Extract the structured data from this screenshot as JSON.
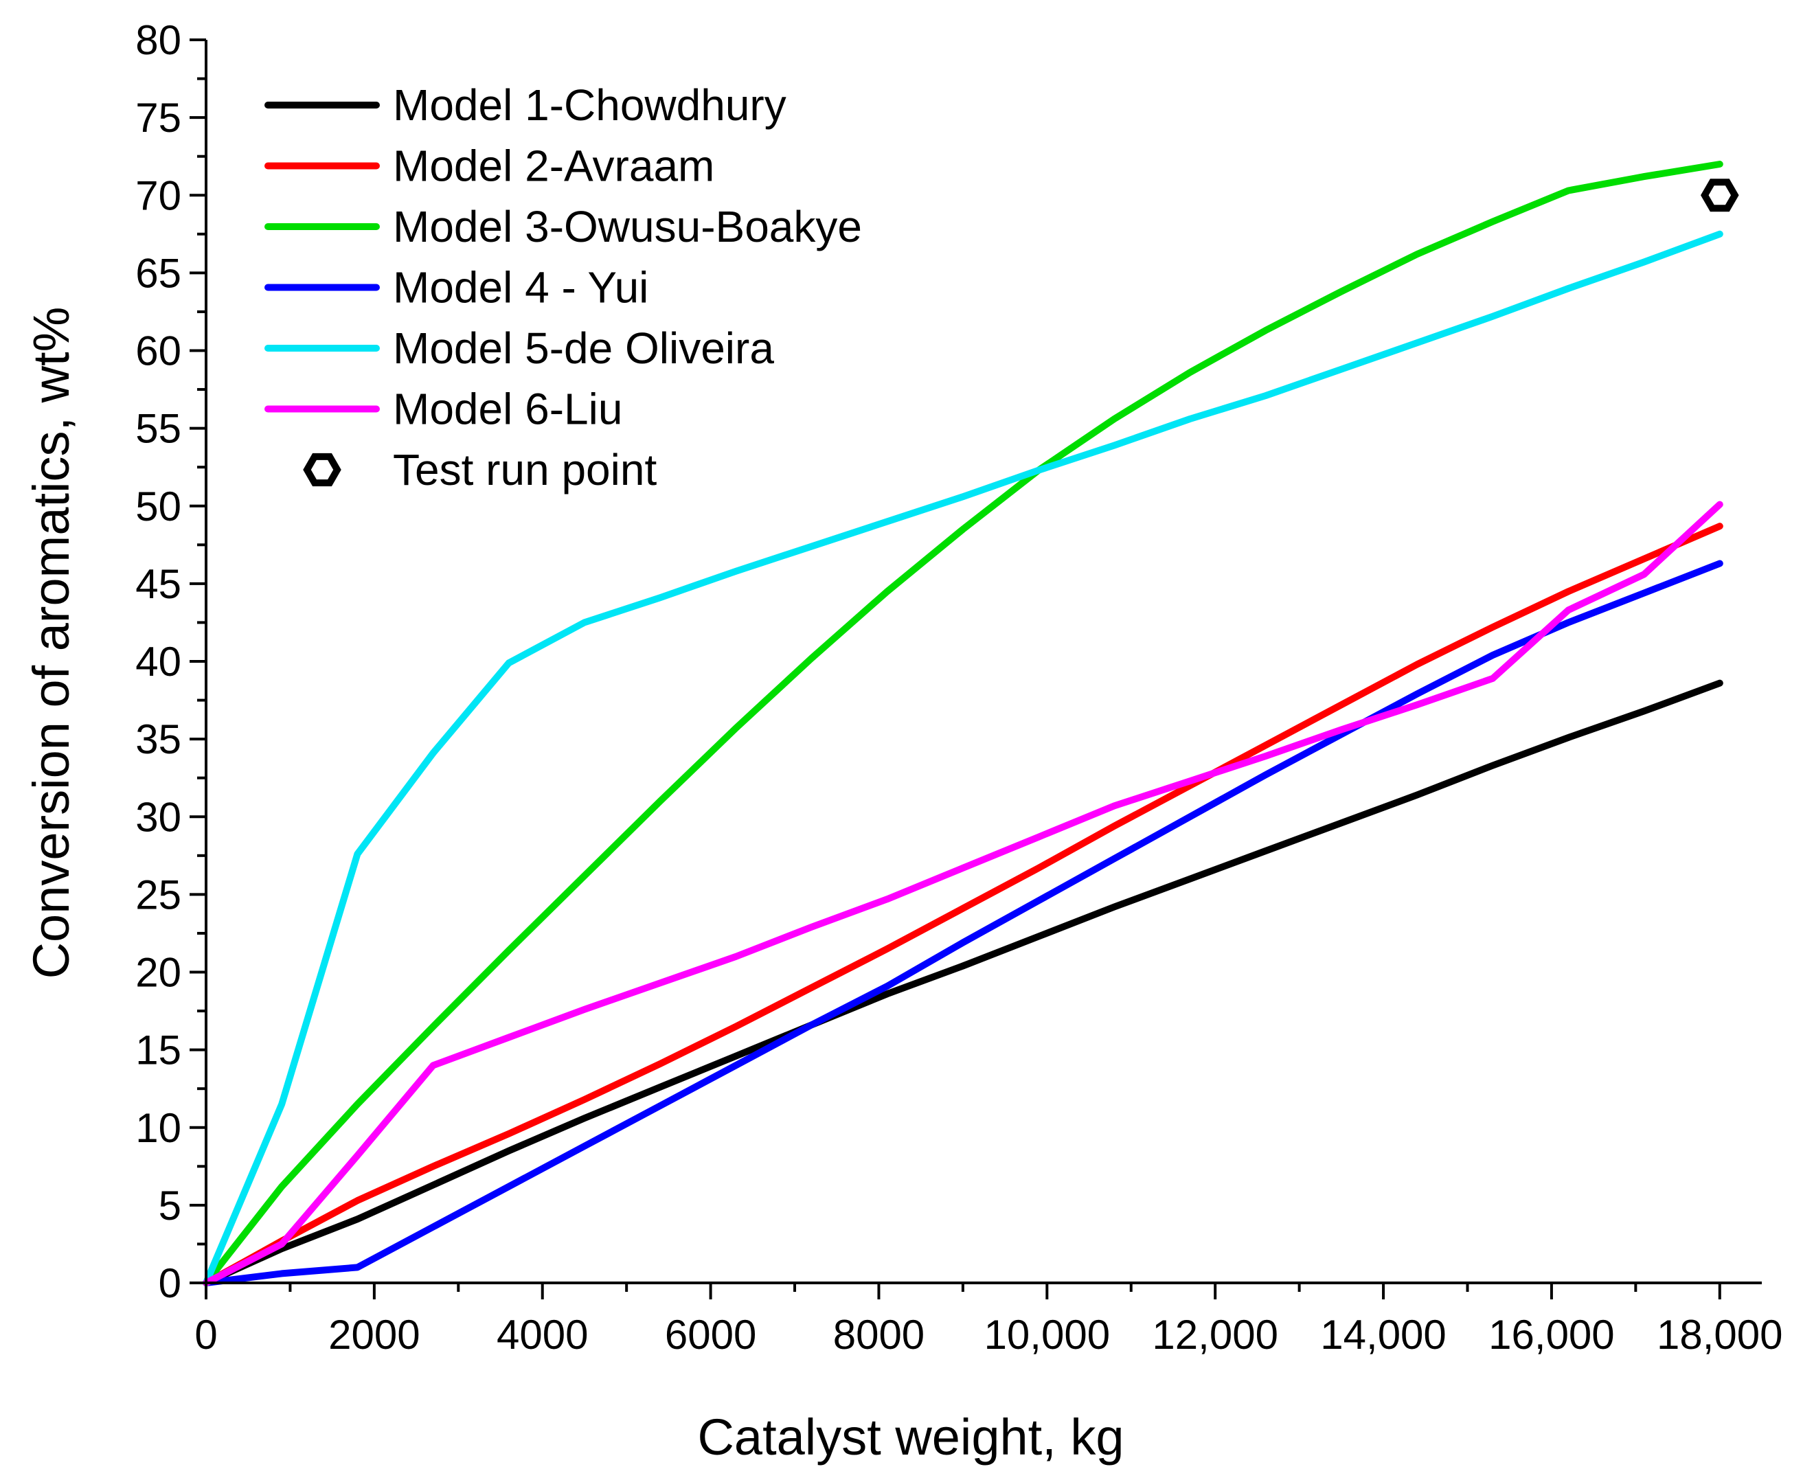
{
  "chart_data": {
    "type": "line",
    "title": "",
    "xlabel": "Catalyst weight, kg",
    "ylabel": "Conversion of aromatics, wt%",
    "xlim": [
      0,
      18500
    ],
    "ylim": [
      0,
      80
    ],
    "x_ticks": [
      {
        "value": 0,
        "label": "0"
      },
      {
        "value": 2000,
        "label": "2000"
      },
      {
        "value": 4000,
        "label": "4000"
      },
      {
        "value": 6000,
        "label": "6000"
      },
      {
        "value": 8000,
        "label": "8000"
      },
      {
        "value": 10000,
        "label": "10,000"
      },
      {
        "value": 12000,
        "label": "12,000"
      },
      {
        "value": 14000,
        "label": "14,000"
      },
      {
        "value": 16000,
        "label": "16,000"
      },
      {
        "value": 18000,
        "label": "18,000"
      }
    ],
    "y_ticks": [
      {
        "value": 0,
        "label": "0"
      },
      {
        "value": 5,
        "label": "5"
      },
      {
        "value": 10,
        "label": "10"
      },
      {
        "value": 15,
        "label": "15"
      },
      {
        "value": 20,
        "label": "20"
      },
      {
        "value": 25,
        "label": "25"
      },
      {
        "value": 30,
        "label": "30"
      },
      {
        "value": 35,
        "label": "35"
      },
      {
        "value": 40,
        "label": "40"
      },
      {
        "value": 45,
        "label": "45"
      },
      {
        "value": 50,
        "label": "50"
      },
      {
        "value": 55,
        "label": "55"
      },
      {
        "value": 60,
        "label": "60"
      },
      {
        "value": 65,
        "label": "65"
      },
      {
        "value": 70,
        "label": "70"
      },
      {
        "value": 75,
        "label": "75"
      },
      {
        "value": 80,
        "label": "80"
      }
    ],
    "grid": false,
    "legend_position": "top-left",
    "series": [
      {
        "name": "Model 1-Chowdhury",
        "color": "#000000",
        "x": [
          0,
          900,
          1800,
          2700,
          3600,
          4500,
          5400,
          6300,
          7200,
          8100,
          9000,
          9900,
          10800,
          11700,
          12600,
          13500,
          14400,
          15300,
          16200,
          17100,
          18000
        ],
        "y": [
          0,
          2.2,
          4.1,
          6.3,
          8.5,
          10.6,
          12.6,
          14.6,
          16.6,
          18.6,
          20.4,
          22.3,
          24.2,
          26.0,
          27.8,
          29.6,
          31.4,
          33.3,
          35.1,
          36.8,
          38.6
        ]
      },
      {
        "name": "Model 2-Avraam",
        "color": "#ff0000",
        "x": [
          0,
          900,
          1800,
          2700,
          3600,
          4500,
          5400,
          6300,
          7200,
          8100,
          9000,
          9900,
          10800,
          11700,
          12600,
          13500,
          14400,
          15300,
          16200,
          17100,
          18000
        ],
        "y": [
          0,
          2.7,
          5.3,
          7.5,
          9.6,
          11.8,
          14.1,
          16.5,
          19.0,
          21.5,
          24.1,
          26.7,
          29.4,
          32.0,
          34.6,
          37.2,
          39.8,
          42.2,
          44.5,
          46.6,
          48.7
        ]
      },
      {
        "name": "Model 3-Owusu-Boakye",
        "color": "#00dd00",
        "x": [
          0,
          900,
          1800,
          2700,
          3600,
          4500,
          5400,
          6300,
          7200,
          8100,
          9000,
          9900,
          10800,
          11700,
          12600,
          13500,
          14400,
          15300,
          16200,
          17100,
          18000
        ],
        "y": [
          0,
          6.2,
          11.5,
          16.5,
          21.4,
          26.2,
          31.0,
          35.7,
          40.2,
          44.5,
          48.5,
          52.3,
          55.6,
          58.6,
          61.3,
          63.8,
          66.2,
          68.3,
          70.3,
          71.2,
          72.0
        ]
      },
      {
        "name": "Model 4 - Yui",
        "color": "#0000ff",
        "x": [
          0,
          900,
          1800,
          2700,
          3600,
          4500,
          5400,
          6300,
          7200,
          8100,
          9000,
          9900,
          10800,
          11700,
          12600,
          13500,
          14400,
          15300,
          16200,
          17100,
          18000
        ],
        "y": [
          0,
          0.6,
          1.0,
          3.6,
          6.2,
          8.8,
          11.4,
          14.0,
          16.6,
          19.1,
          21.9,
          24.6,
          27.3,
          30.0,
          32.7,
          35.3,
          37.9,
          40.4,
          42.5,
          44.4,
          46.3
        ]
      },
      {
        "name": "Model 5-de Oliveira",
        "color": "#00e5f5",
        "x": [
          0,
          900,
          1800,
          2700,
          3600,
          4500,
          5400,
          6300,
          7200,
          8100,
          9000,
          9900,
          10800,
          11700,
          12600,
          13500,
          14400,
          15300,
          16200,
          17100,
          18000
        ],
        "y": [
          0,
          11.5,
          27.6,
          34.1,
          39.9,
          42.5,
          44.1,
          45.8,
          47.4,
          49.0,
          50.6,
          52.3,
          53.9,
          55.6,
          57.1,
          58.8,
          60.5,
          62.2,
          64.0,
          65.7,
          67.5
        ]
      },
      {
        "name": "Model 6-Liu",
        "color": "#ff00ff",
        "x": [
          0,
          900,
          1800,
          2700,
          3600,
          4500,
          5400,
          6300,
          7200,
          8100,
          9000,
          9900,
          10800,
          11700,
          12600,
          13500,
          14400,
          15300,
          16200,
          17100,
          18000
        ],
        "y": [
          0,
          2.5,
          8.2,
          14.0,
          15.8,
          17.6,
          19.3,
          21.0,
          22.9,
          24.7,
          26.7,
          28.7,
          30.7,
          32.3,
          33.9,
          35.6,
          37.2,
          38.9,
          43.3,
          45.6,
          50.1
        ]
      }
    ],
    "test_point": {
      "name": "Test run point",
      "x": 18000,
      "y": 70
    }
  }
}
